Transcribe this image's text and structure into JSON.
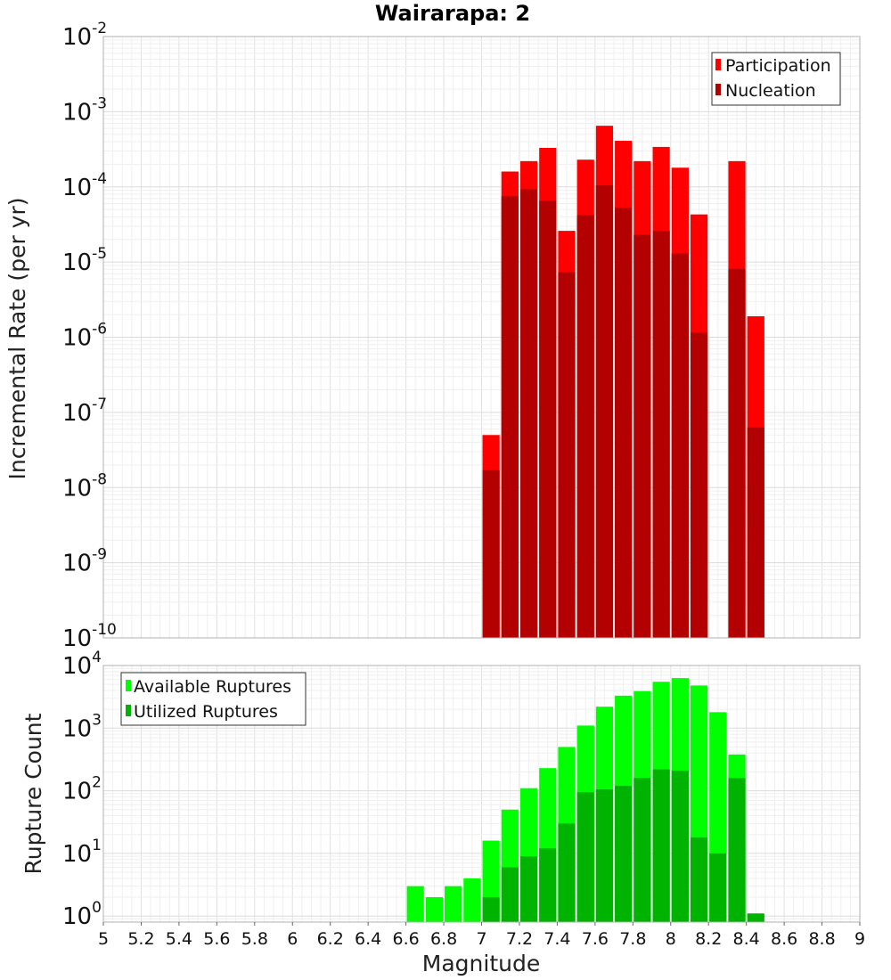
{
  "title": "Wairarapa: 2",
  "colors": {
    "participation": "#ff0000",
    "nucleation": "#b30000",
    "available": "#00ff00",
    "utilized": "#00b300",
    "grid": "#e6e6e6",
    "frame": "#b0b0b0"
  },
  "chart_data": [
    {
      "type": "bar",
      "ylabel": "Incremental Rate (per yr)",
      "yscale": "log",
      "ylim": [
        1e-10,
        0.01
      ],
      "xlim": [
        5,
        9
      ],
      "bar_width": 0.1,
      "legend": "top-right",
      "grid": true,
      "y_ticks": [
        {
          "base": "10",
          "exp": "-2"
        },
        {
          "base": "10",
          "exp": "-3"
        },
        {
          "base": "10",
          "exp": "-4"
        },
        {
          "base": "10",
          "exp": "-5"
        },
        {
          "base": "10",
          "exp": "-6"
        },
        {
          "base": "10",
          "exp": "-7"
        },
        {
          "base": "10",
          "exp": "-8"
        },
        {
          "base": "10",
          "exp": "-9"
        },
        {
          "base": "10",
          "exp": "-10"
        }
      ],
      "series": [
        {
          "name": "Participation",
          "x": [
            7.05,
            7.15,
            7.25,
            7.35,
            7.45,
            7.55,
            7.65,
            7.75,
            7.85,
            7.95,
            8.05,
            8.15,
            8.35,
            8.45
          ],
          "values": [
            5e-08,
            0.00016,
            0.00022,
            0.00033,
            2.6e-05,
            0.00023,
            0.00065,
            0.00041,
            0.00022,
            0.00034,
            0.00018,
            4.3e-05,
            0.00022,
            1.9e-06
          ]
        },
        {
          "name": "Nucleation",
          "x": [
            7.05,
            7.15,
            7.25,
            7.35,
            7.45,
            7.55,
            7.65,
            7.75,
            7.85,
            7.95,
            8.05,
            8.15,
            8.35,
            8.45
          ],
          "values": [
            1.7e-08,
            7.5e-05,
            9.3e-05,
            6.5e-05,
            7.3e-06,
            4.2e-05,
            0.000105,
            5.3e-05,
            2.3e-05,
            2.6e-05,
            1.3e-05,
            1.15e-06,
            8.1e-06,
            6.3e-08
          ]
        }
      ]
    },
    {
      "type": "bar",
      "ylabel": "Rupture Count",
      "xlabel": "Magnitude",
      "yscale": "log",
      "ylim": [
        0.8,
        10000
      ],
      "xlim": [
        5,
        9
      ],
      "bar_width": 0.1,
      "legend": "top-left",
      "grid": true,
      "x_ticks": [
        "5",
        "5.2",
        "5.4",
        "5.6",
        "5.8",
        "6",
        "6.2",
        "6.4",
        "6.6",
        "6.8",
        "7",
        "7.2",
        "7.4",
        "7.6",
        "7.8",
        "8",
        "8.2",
        "8.4",
        "8.6",
        "8.8",
        "9"
      ],
      "y_ticks": [
        {
          "base": "10",
          "exp": "4"
        },
        {
          "base": "10",
          "exp": "3"
        },
        {
          "base": "10",
          "exp": "2"
        },
        {
          "base": "10",
          "exp": "1"
        },
        {
          "base": "10",
          "exp": "0"
        }
      ],
      "series": [
        {
          "name": "Available Ruptures",
          "x": [
            6.65,
            6.75,
            6.85,
            6.95,
            7.05,
            7.15,
            7.25,
            7.35,
            7.45,
            7.55,
            7.65,
            7.75,
            7.85,
            7.95,
            8.05,
            8.15,
            8.25,
            8.35
          ],
          "values": [
            3,
            2,
            3,
            4,
            16,
            50,
            110,
            230,
            500,
            1100,
            2200,
            3300,
            3900,
            5500,
            6300,
            4800,
            1800,
            380
          ]
        },
        {
          "name": "Utilized Ruptures",
          "x": [
            7.05,
            7.15,
            7.25,
            7.35,
            7.45,
            7.55,
            7.65,
            7.75,
            7.85,
            7.95,
            8.05,
            8.15,
            8.25,
            8.35,
            8.45
          ],
          "values": [
            2,
            6,
            9,
            12,
            30,
            95,
            105,
            120,
            160,
            220,
            210,
            18,
            10,
            160,
            1.1
          ]
        }
      ]
    }
  ]
}
